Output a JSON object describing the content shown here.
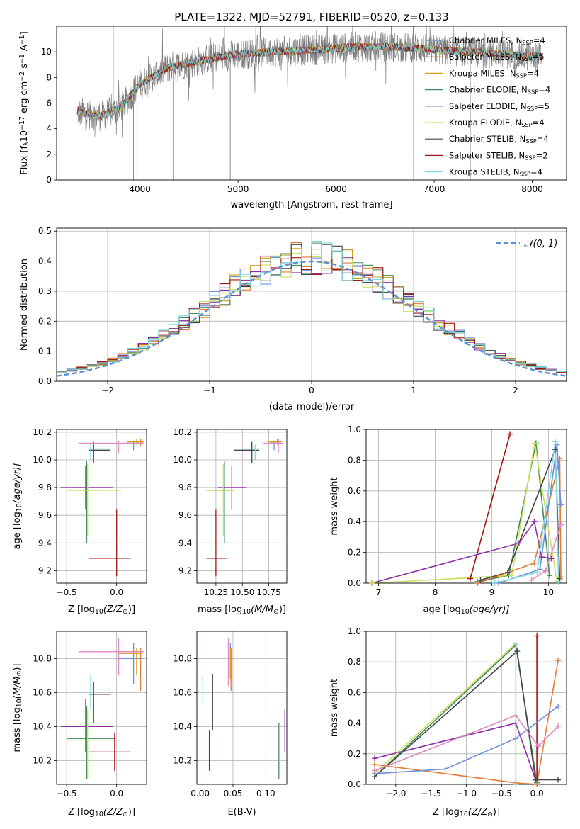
{
  "figure_title": "PLATE=1322, MJD=52791, FIBERID=0520, z=0.133",
  "models": [
    {
      "label": "Chabrier MILES, N",
      "sub": "SSP",
      "suffix": "=4",
      "color": "#6f8fdc"
    },
    {
      "label": "Salpeter MILES, N",
      "sub": "SSP",
      "suffix": "=5",
      "color": "#e07b39"
    },
    {
      "label": "Kroupa MILES, N",
      "sub": "SSP",
      "suffix": "=4",
      "color": "#d4a017"
    },
    {
      "label": "Chabrier ELODIE, N",
      "sub": "SSP",
      "suffix": "=4",
      "color": "#3d8a5a"
    },
    {
      "label": "Salpeter ELODIE, N",
      "sub": "SSP",
      "suffix": "=5",
      "color": "#8e2fa8"
    },
    {
      "label": "Kroupa ELODIE, N",
      "sub": "SSP",
      "suffix": "=4",
      "color": "#cde05a"
    },
    {
      "label": "Chabrier STELIB, N",
      "sub": "SSP",
      "suffix": "=4",
      "color": "#454545"
    },
    {
      "label": "Salpeter STELIB, N",
      "sub": "SSP",
      "suffix": "=2",
      "color": "#a81313"
    },
    {
      "label": "Kroupa STELIB, N",
      "sub": "SSP",
      "suffix": "=4",
      "color": "#7fd9e0"
    }
  ],
  "chart_data": [
    {
      "id": "spectrum",
      "type": "line",
      "xlabel": "wavelength [Angstrom, rest frame]",
      "ylabel": "Flux [f",
      "ylabel_sub": "λ",
      "ylabel_mid": "10",
      "ylabel_sup": "−17",
      "ylabel_rest": " erg cm",
      "ylabel_sup2": "−2",
      "ylabel_rest2": " s",
      "ylabel_sup3": "−1",
      "ylabel_rest3": " A",
      "ylabel_sup4": "−1",
      "ylabel_end": "]",
      "xlim": [
        3150,
        8350
      ],
      "ylim": [
        0,
        12
      ],
      "xticks": [
        4000,
        5000,
        6000,
        7000,
        8000
      ],
      "yticks": [
        0,
        2,
        4,
        6,
        8,
        10
      ],
      "data_range": [
        3360,
        8100
      ],
      "observed_color": "#808080",
      "continuum_x": [
        3360,
        3600,
        3800,
        4000,
        4300,
        4500,
        4800,
        5000,
        5300,
        5600,
        5900,
        6200,
        6500,
        6800,
        7100,
        7400,
        7700,
        8100
      ],
      "continuum_y": [
        5.3,
        5.0,
        5.6,
        7.5,
        8.8,
        9.1,
        9.6,
        9.8,
        10.0,
        10.1,
        10.2,
        10.4,
        10.4,
        10.3,
        10.1,
        10.0,
        9.8,
        9.6
      ],
      "spikes": [
        {
          "x": 3934,
          "y": 0.0
        },
        {
          "x": 3969,
          "y": 0.0
        },
        {
          "x": 4340,
          "y": 0.0
        },
        {
          "x": 4861,
          "y": 12.0
        },
        {
          "x": 4920,
          "y": 0.0
        },
        {
          "x": 6563,
          "y": 12.0
        },
        {
          "x": 6790,
          "y": 0.0
        },
        {
          "x": 7368,
          "y": 0.0
        },
        {
          "x": 3727,
          "y": 12.0
        }
      ]
    },
    {
      "id": "residuals",
      "type": "bar",
      "xlabel": "(data-model)/error",
      "ylabel": "Normed distribution",
      "xlim": [
        -2.5,
        2.5
      ],
      "ylim": [
        0,
        0.51
      ],
      "xticks": [
        -2,
        -1,
        0,
        1,
        2
      ],
      "xtick_labels": [
        "−2",
        "−1",
        "0",
        "1",
        "2"
      ],
      "yticks": [
        0,
        0.1,
        0.2,
        0.3,
        0.4,
        0.5
      ],
      "ytick_labels": [
        "0.0",
        "0.1",
        "0.2",
        "0.3",
        "0.4",
        "0.5"
      ],
      "grid": true,
      "bin_width": 0.1,
      "bin_start": -2.5,
      "gaussian_label": "𝒩(0, 1)",
      "gaussian_color": "#5b8fd6"
    },
    {
      "id": "age_vs_Z",
      "type": "scatter",
      "xlabel": "Z [log",
      "xlabel_sub": "10",
      "xlabel_rest": "(Z/Z",
      "xlabel_sub2": "⊙",
      "xlabel_end": ")]",
      "ylabel": "age  [log",
      "ylabel_sub": "10",
      "ylabel_rest": "(age/yr)]",
      "xlim": [
        -0.6,
        0.3
      ],
      "ylim": [
        9.11,
        10.22
      ],
      "xticks": [
        -0.5,
        0.0
      ],
      "xtick_labels": [
        "−0.5",
        "0.0"
      ],
      "yticks": [
        9.2,
        9.4,
        9.6,
        9.8,
        10.0,
        10.2
      ],
      "ytick_labels": [
        "9.2",
        "9.4",
        "9.6",
        "9.8",
        "10.0",
        "10.2"
      ],
      "grid": true,
      "points": [
        {
          "m": 0,
          "x": 0.17,
          "xe": [
            0.07,
            0.27
          ],
          "y": 10.12,
          "ye": [
            10.07,
            10.14
          ]
        },
        {
          "m": 1,
          "x": 0.24,
          "xe": [
            0.21,
            0.27
          ],
          "y": 10.13,
          "ye": [
            10.1,
            10.15
          ]
        },
        {
          "m": 2,
          "x": 0.2,
          "xe": [
            0.1,
            0.26
          ],
          "y": 10.13,
          "ye": [
            10.11,
            10.15
          ]
        },
        {
          "m": 3,
          "x": -0.3,
          "xe": [
            -0.34,
            -0.27
          ],
          "y": 9.78,
          "ye": [
            9.4,
            9.99
          ]
        },
        {
          "m": 4,
          "x": -0.31,
          "xe": [
            -0.56,
            -0.04
          ],
          "y": 9.8,
          "ye": [
            9.64,
            9.96
          ]
        },
        {
          "m": 5,
          "x": -0.29,
          "xe": [
            -0.5,
            0.05
          ],
          "y": 9.78,
          "ye": [
            9.45,
            9.97
          ]
        },
        {
          "m": 6,
          "x": -0.23,
          "xe": [
            -0.28,
            -0.06
          ],
          "y": 10.07,
          "ye": [
            9.98,
            10.13
          ]
        },
        {
          "m": 7,
          "x": 0.0,
          "xe": [
            -0.28,
            0.14
          ],
          "y": 9.29,
          "ye": [
            9.16,
            9.64
          ]
        },
        {
          "m": 8,
          "x": -0.26,
          "xe": [
            -0.28,
            -0.06
          ],
          "y": 10.08,
          "ye": [
            10.0,
            10.11
          ]
        },
        {
          "m": 9,
          "x": 0.02,
          "xe": [
            -0.38,
            0.27
          ],
          "y": 10.12,
          "ye": [
            10.05,
            10.14
          ]
        }
      ]
    },
    {
      "id": "age_vs_mass",
      "type": "scatter",
      "xlabel": "mass [log",
      "xlabel_sub": "10",
      "xlabel_rest": "(M/M",
      "xlabel_sub2": "⊙",
      "xlabel_end": ")]",
      "xlim": [
        10.07,
        10.92
      ],
      "ylim": [
        9.11,
        10.22
      ],
      "xticks": [
        10.25,
        10.5,
        10.75
      ],
      "xtick_labels": [
        "10.25",
        "10.50",
        "10.75"
      ],
      "yticks": [
        9.2,
        9.4,
        9.6,
        9.8,
        10.0,
        10.2
      ],
      "ytick_labels": [
        "9.2",
        "9.4",
        "9.6",
        "9.8",
        "10.0",
        "10.2"
      ],
      "grid": true,
      "points": [
        {
          "m": 0,
          "x": 10.8,
          "xe": [
            10.71,
            10.87
          ],
          "y": 10.12,
          "ye": [
            10.07,
            10.14
          ]
        },
        {
          "m": 1,
          "x": 10.84,
          "xe": [
            10.77,
            10.87
          ],
          "y": 10.13,
          "ye": [
            10.1,
            10.15
          ]
        },
        {
          "m": 2,
          "x": 10.83,
          "xe": [
            10.74,
            10.86
          ],
          "y": 10.13,
          "ye": [
            10.11,
            10.15
          ]
        },
        {
          "m": 3,
          "x": 10.33,
          "xe": [
            10.16,
            10.42
          ],
          "y": 9.78,
          "ye": [
            9.4,
            9.99
          ]
        },
        {
          "m": 4,
          "x": 10.4,
          "xe": [
            10.27,
            10.54
          ],
          "y": 9.8,
          "ye": [
            9.64,
            9.96
          ]
        },
        {
          "m": 5,
          "x": 10.32,
          "xe": [
            10.16,
            10.42
          ],
          "y": 9.78,
          "ye": [
            9.45,
            9.97
          ]
        },
        {
          "m": 6,
          "x": 10.59,
          "xe": [
            10.42,
            10.66
          ],
          "y": 10.07,
          "ye": [
            9.98,
            10.13
          ]
        },
        {
          "m": 7,
          "x": 10.25,
          "xe": [
            10.16,
            10.36
          ],
          "y": 9.29,
          "ye": [
            9.16,
            9.64
          ]
        },
        {
          "m": 8,
          "x": 10.62,
          "xe": [
            10.5,
            10.7
          ],
          "y": 10.08,
          "ye": [
            10.0,
            10.11
          ]
        },
        {
          "m": 9,
          "x": 10.84,
          "xe": [
            10.7,
            10.89
          ],
          "y": 10.12,
          "ye": [
            10.05,
            10.14
          ]
        }
      ]
    },
    {
      "id": "weight_vs_age",
      "type": "line",
      "xlabel": "age  [log",
      "xlabel_sub": "10",
      "xlabel_rest": "(age/yr)]",
      "ylabel": "mass weight",
      "xlim": [
        6.78,
        10.32
      ],
      "ylim": [
        0,
        1
      ],
      "xticks": [
        7,
        8,
        9,
        10
      ],
      "xtick_labels": [
        "7",
        "8",
        "9",
        "10"
      ],
      "yticks": [
        0,
        0.2,
        0.4,
        0.6,
        0.8,
        1.0
      ],
      "ytick_labels": [
        "0.0",
        "0.2",
        "0.4",
        "0.6",
        "0.8",
        "1.0"
      ],
      "grid": true,
      "series": [
        {
          "m": 7,
          "x": [
            8.62,
            9.32
          ],
          "y": [
            0.03,
            0.97
          ]
        },
        {
          "m": 4,
          "x": [
            6.88,
            9.48,
            9.75,
            9.88,
            10.05
          ],
          "y": [
            0.0,
            0.26,
            0.4,
            0.17,
            0.16
          ]
        },
        {
          "m": 3,
          "x": [
            8.75,
            9.3,
            9.78,
            10.02
          ],
          "y": [
            0.01,
            0.05,
            0.91,
            0.05
          ]
        },
        {
          "m": 5,
          "x": [
            6.88,
            9.35,
            9.76,
            10.15
          ],
          "y": [
            0.0,
            0.05,
            0.91,
            0.01
          ]
        },
        {
          "m": 6,
          "x": [
            8.8,
            9.28,
            10.12,
            10.2
          ],
          "y": [
            0.02,
            0.07,
            0.87,
            0.03
          ]
        },
        {
          "m": 1,
          "x": [
            8.75,
            9.75,
            10.2,
            10.22
          ],
          "y": [
            0.0,
            0.13,
            0.81,
            0.04
          ]
        },
        {
          "m": 0,
          "x": [
            9.12,
            9.85,
            10.15,
            10.22
          ],
          "y": [
            0.0,
            0.09,
            0.9,
            0.51
          ]
        },
        {
          "m": 8,
          "x": [
            9.05,
            9.8,
            10.12,
            10.18
          ],
          "y": [
            0.0,
            0.07,
            0.92,
            0.01
          ]
        },
        {
          "m": 9,
          "x": [
            9.7,
            9.95,
            10.22
          ],
          "y": [
            0.02,
            0.08,
            0.38
          ]
        }
      ]
    },
    {
      "id": "mass_vs_Z",
      "type": "scatter",
      "xlabel": "Z [log",
      "xlabel_sub": "10",
      "xlabel_rest": "(Z/Z",
      "xlabel_sub2": "⊙",
      "xlabel_end": ")]",
      "ylabel": "mass [log",
      "ylabel_sub": "10",
      "ylabel_rest": "(M/M",
      "ylabel_sub2": "⊙",
      "ylabel_end": ")]",
      "xlim": [
        -0.6,
        0.3
      ],
      "ylim": [
        10.06,
        10.96
      ],
      "xticks": [
        -0.5,
        0.0
      ],
      "xtick_labels": [
        "−0.5",
        "0.0"
      ],
      "yticks": [
        10.2,
        10.4,
        10.6,
        10.8
      ],
      "ytick_labels": [
        "10.2",
        "10.4",
        "10.6",
        "10.8"
      ],
      "grid": true,
      "points": [
        {
          "m": 0,
          "x": 0.17,
          "xe": [
            0.02,
            0.27
          ],
          "y": 10.8,
          "ye": [
            10.65,
            10.89
          ]
        },
        {
          "m": 1,
          "x": 0.24,
          "xe": [
            0.02,
            0.27
          ],
          "y": 10.84,
          "ye": [
            10.61,
            10.86
          ]
        },
        {
          "m": 2,
          "x": 0.2,
          "xe": [
            0.02,
            0.26
          ],
          "y": 10.83,
          "ye": [
            10.7,
            10.86
          ]
        },
        {
          "m": 3,
          "x": -0.3,
          "xe": [
            -0.5,
            -0.01
          ],
          "y": 10.33,
          "ye": [
            10.09,
            10.52
          ]
        },
        {
          "m": 4,
          "x": -0.31,
          "xe": [
            -0.56,
            -0.04
          ],
          "y": 10.4,
          "ye": [
            10.25,
            10.56
          ]
        },
        {
          "m": 5,
          "x": -0.29,
          "xe": [
            -0.5,
            0.05
          ],
          "y": 10.32,
          "ye": [
            10.09,
            10.5
          ]
        },
        {
          "m": 6,
          "x": -0.23,
          "xe": [
            -0.28,
            -0.06
          ],
          "y": 10.59,
          "ye": [
            10.42,
            10.66
          ]
        },
        {
          "m": 7,
          "x": -0.02,
          "xe": [
            -0.28,
            0.14
          ],
          "y": 10.25,
          "ye": [
            10.14,
            10.36
          ]
        },
        {
          "m": 8,
          "x": -0.26,
          "xe": [
            -0.28,
            -0.06
          ],
          "y": 10.62,
          "ye": [
            10.5,
            10.7
          ]
        },
        {
          "m": 9,
          "x": 0.02,
          "xe": [
            -0.38,
            0.27
          ],
          "y": 10.84,
          "ye": [
            10.7,
            10.92
          ]
        }
      ]
    },
    {
      "id": "mass_vs_EBV",
      "type": "scatter",
      "xlabel": "E(B-V)",
      "xlim": [
        -0.005,
        0.132
      ],
      "ylim": [
        10.06,
        10.96
      ],
      "xticks": [
        0.0,
        0.05,
        0.1
      ],
      "xtick_labels": [
        "0.00",
        "0.05",
        "0.10"
      ],
      "yticks": [
        10.2,
        10.4,
        10.6,
        10.8
      ],
      "ytick_labels": [
        "10.2",
        "10.4",
        "10.6",
        "10.8"
      ],
      "grid": true,
      "points": [
        {
          "m": 0,
          "x": 0.046,
          "ye": [
            10.7,
            10.89
          ]
        },
        {
          "m": 1,
          "x": 0.047,
          "ye": [
            10.61,
            10.86
          ]
        },
        {
          "m": 2,
          "x": 0.046,
          "ye": [
            10.68,
            10.86
          ]
        },
        {
          "m": 3,
          "x": 0.12,
          "ye": [
            10.09,
            10.42
          ]
        },
        {
          "m": 4,
          "x": 0.129,
          "ye": [
            10.25,
            10.5
          ]
        },
        {
          "m": 5,
          "x": 0.121,
          "ye": [
            10.09,
            10.42
          ]
        },
        {
          "m": 6,
          "x": 0.019,
          "ye": [
            10.38,
            10.71
          ]
        },
        {
          "m": 7,
          "x": 0.014,
          "ye": [
            10.14,
            10.38
          ]
        },
        {
          "m": 8,
          "x": 0.004,
          "ye": [
            10.52,
            10.7
          ]
        },
        {
          "m": 9,
          "x": 0.043,
          "ye": [
            10.64,
            10.92
          ]
        }
      ]
    },
    {
      "id": "weight_vs_Z",
      "type": "line",
      "xlabel": "Z [log",
      "xlabel_sub": "10",
      "xlabel_rest": "(Z/Z",
      "xlabel_sub2": "⊙",
      "xlabel_end": ")]",
      "ylabel": "mass weight",
      "xlim": [
        -2.42,
        0.42
      ],
      "ylim": [
        0,
        1
      ],
      "xticks": [
        -2.0,
        -1.5,
        -1.0,
        -0.5,
        0.0
      ],
      "xtick_labels": [
        "−2.0",
        "−1.5",
        "−1.0",
        "−0.5",
        "0.0"
      ],
      "yticks": [
        0,
        0.2,
        0.4,
        0.6,
        0.8,
        1.0
      ],
      "ytick_labels": [
        "0.0",
        "0.2",
        "0.4",
        "0.6",
        "0.8",
        "1.0"
      ],
      "grid": true,
      "series": [
        {
          "m": 7,
          "x": [
            0.0,
            0.0
          ],
          "y": [
            0.03,
            0.97
          ]
        },
        {
          "m": 4,
          "x": [
            -2.3,
            -0.3,
            -0.02
          ],
          "y": [
            0.17,
            0.4,
            0.03
          ]
        },
        {
          "m": 3,
          "x": [
            -2.3,
            -0.3,
            0.0
          ],
          "y": [
            0.05,
            0.91,
            0.01
          ]
        },
        {
          "m": 5,
          "x": [
            -2.3,
            -0.3,
            -0.3
          ],
          "y": [
            0.07,
            0.92,
            0.0
          ]
        },
        {
          "m": 6,
          "x": [
            -2.3,
            -0.28,
            -0.02,
            0.3
          ],
          "y": [
            0.05,
            0.87,
            0.03,
            0.03
          ]
        },
        {
          "m": 1,
          "x": [
            -2.3,
            -0.3,
            0.0,
            0.3
          ],
          "y": [
            0.13,
            0.01,
            0.0,
            0.81
          ]
        },
        {
          "m": 0,
          "x": [
            -2.3,
            -1.3,
            -0.3,
            0.3
          ],
          "y": [
            0.07,
            0.1,
            0.3,
            0.51
          ]
        },
        {
          "m": 8,
          "x": [
            -0.3,
            -0.3
          ],
          "y": [
            0.0,
            0.92
          ]
        },
        {
          "m": 9,
          "x": [
            -2.3,
            -0.3,
            0.02,
            0.3
          ],
          "y": [
            0.09,
            0.45,
            0.25,
            0.38
          ]
        }
      ]
    }
  ]
}
